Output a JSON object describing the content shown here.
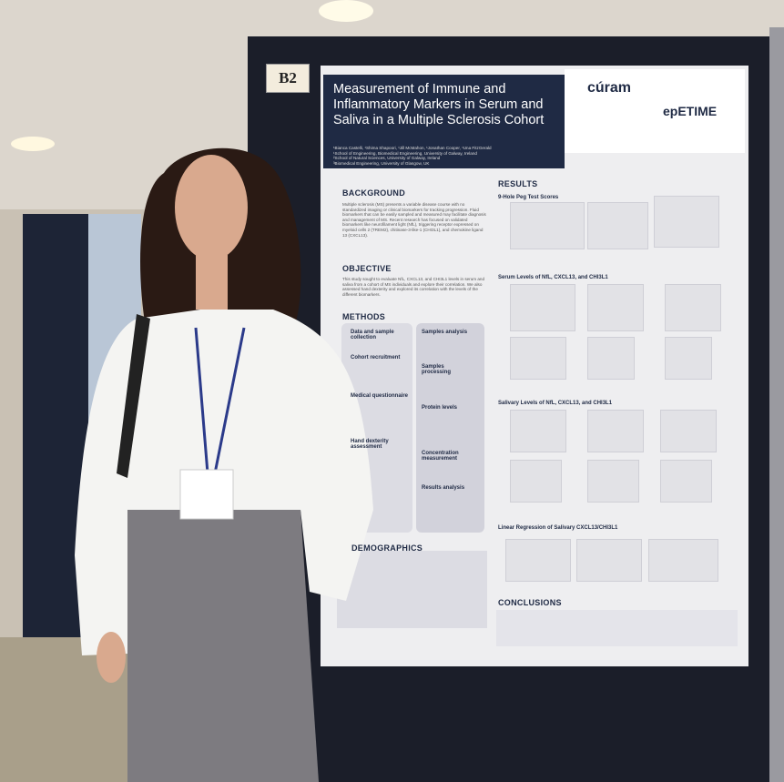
{
  "board_label": "B2",
  "poster": {
    "title": "Measurement of Immune and Inflammatory Markers in Serum and Saliva in a Multiple Sclerosis Cohort",
    "authors": "¹Bianca Castelli, ¹Shima Shapoori, ¹Jill McMahon, ¹Jonathan Cooper, ¹Una FitzGerald",
    "affiliations": [
      "¹School of Engineering, Biomedical Engineering, University of Galway, Ireland",
      "²School of Natural Sciences, University of Galway, Ireland",
      "³Biomedical Engineering, University of Glasgow, UK"
    ],
    "logos": [
      "cúram",
      "epETIME"
    ],
    "background": {
      "heading": "BACKGROUND",
      "text": "Multiple sclerosis (MS) presents a variable disease course with no standardized imaging or clinical biomarkers for tracking progression. Fluid biomarkers that can be easily sampled and measured may facilitate diagnosis and management of MS. Recent research has focused on validated biomarkers like neurofilament light (NfL), triggering receptor expressed on myeloid cells 2 (TREM2), chitinase-3-like-1 (CHI3L1), and chemokine ligand 13 (CXCL13)."
    },
    "objective": {
      "heading": "OBJECTIVE",
      "text": "This study sought to evaluate NfL, CXCL13, and CHI3L1 levels in serum and saliva from a cohort of MS individuals and explore their correlation. We also assessed hand dexterity and explored its correlation with the levels of the different biomarkers."
    },
    "methods": {
      "heading": "METHODS",
      "left_title": "Data and sample collection",
      "right_title": "Samples analysis",
      "left_steps": [
        "Cohort recruitment",
        "Medical questionnaire",
        "Hand dexterity assessment"
      ],
      "right_steps": [
        "Samples processing",
        "Protein levels",
        "Concentration measurement",
        "Results analysis"
      ]
    },
    "demographics": {
      "heading": "DEMOGRAPHICS"
    },
    "results": {
      "heading": "RESULTS",
      "subheadings": [
        "9-Hole Peg Test Scores",
        "Serum Levels of NfL, CXCL13, and CHI3L1",
        "Salivary Levels of NfL, CXCL13, and CHI3L1",
        "Linear Regression of Salivary CXCL13/CHI3L1"
      ]
    },
    "conclusions": {
      "heading": "CONCLUSIONS"
    }
  }
}
